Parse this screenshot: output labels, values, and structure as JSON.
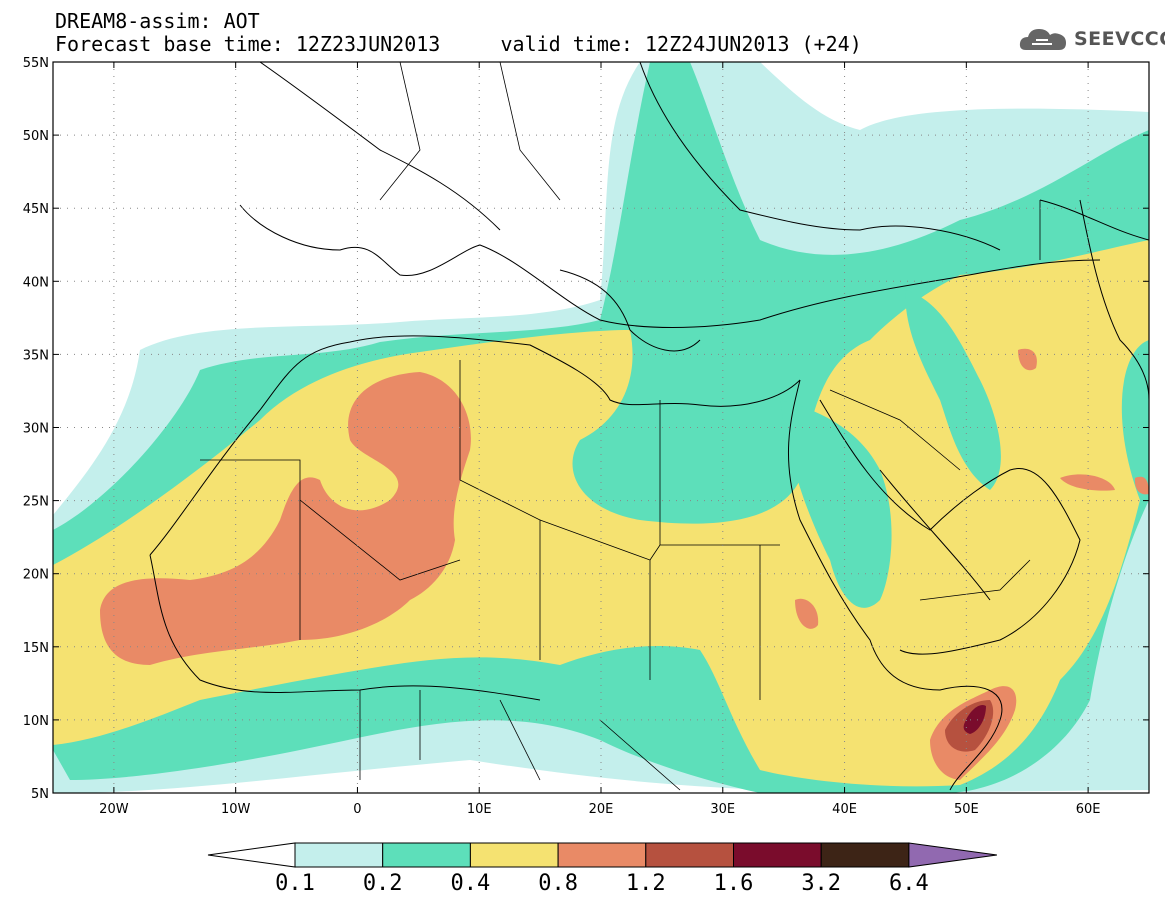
{
  "header": {
    "title_line1": "DREAM8-assim: AOT",
    "title_line2": "Forecast base time: 12Z23JUN2013     valid time: 12Z24JUN2013 (+24)"
  },
  "logo": {
    "text": "SEEVCCC",
    "icon": "cloud-logo-icon"
  },
  "map": {
    "lat_labels": [
      "55N",
      "50N",
      "45N",
      "40N",
      "35N",
      "30N",
      "25N",
      "20N",
      "15N",
      "10N",
      "5N"
    ],
    "lon_labels": [
      "20W",
      "10W",
      "0",
      "10E",
      "20E",
      "30E",
      "40E",
      "50E",
      "60E"
    ],
    "lat_range": [
      5,
      55
    ],
    "lon_range": [
      -25,
      65
    ],
    "grid": "dotted"
  },
  "colorbar": {
    "labels": [
      "0.1",
      "0.2",
      "0.4",
      "0.8",
      "1.2",
      "1.6",
      "3.2",
      "6.4"
    ],
    "colors": {
      "under": "#ffffff",
      "c1": "#c4efec",
      "c2": "#5ddfba",
      "c3": "#f5e271",
      "c4": "#e98a66",
      "c5": "#b6513f",
      "c6": "#7a0c2c",
      "c7": "#3d2416",
      "over": "#9169b0"
    }
  }
}
